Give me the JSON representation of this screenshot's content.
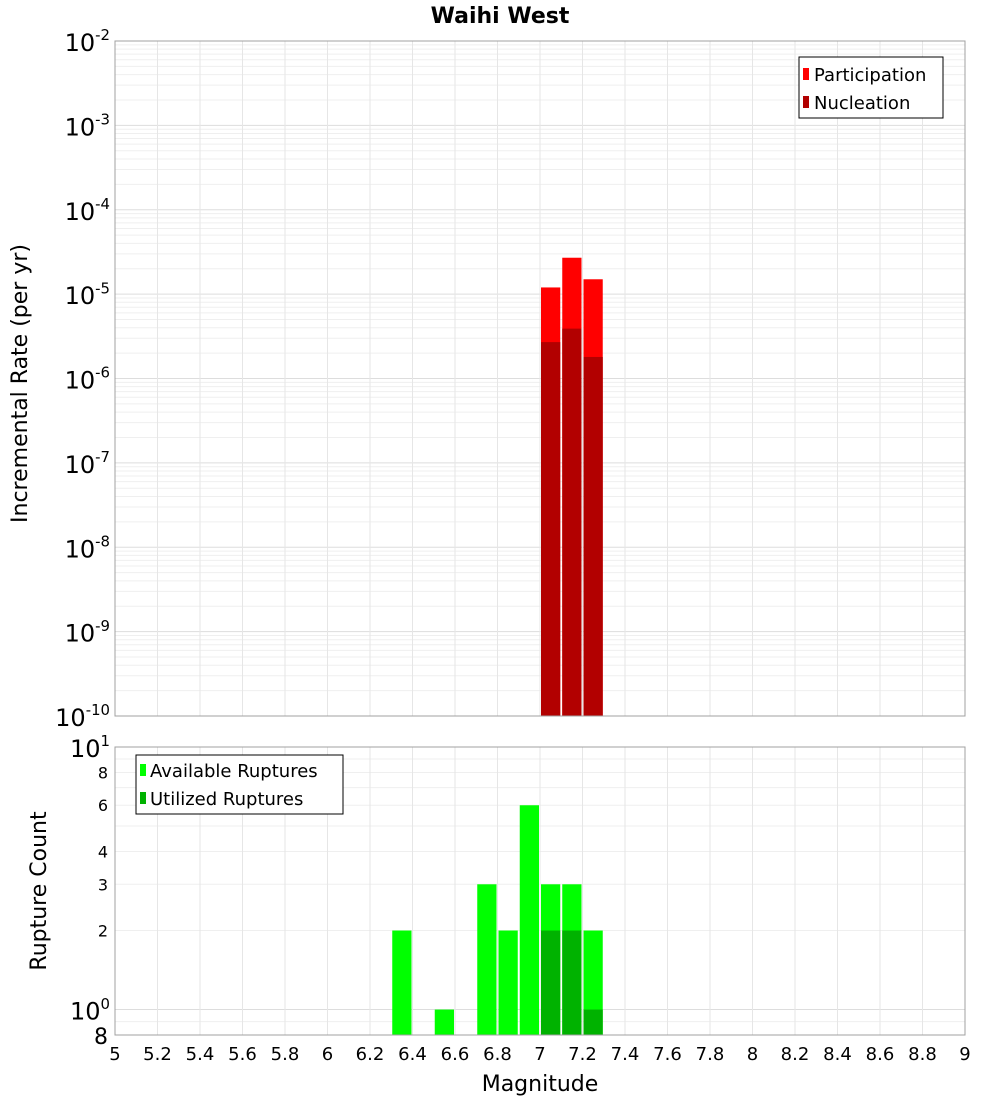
{
  "title": "Waihi West",
  "chart_data": [
    {
      "type": "bar",
      "title": "Waihi West",
      "xlabel": "",
      "ylabel": "Incremental Rate (per yr)",
      "yscale": "log",
      "ylim": [
        1e-10,
        0.01
      ],
      "xlim": [
        5,
        9
      ],
      "bin_width": 0.1,
      "y_tick_labels": [
        {
          "base": "10",
          "exp": "-2"
        },
        {
          "base": "10",
          "exp": "-3"
        },
        {
          "base": "10",
          "exp": "-4"
        },
        {
          "base": "10",
          "exp": "-5"
        },
        {
          "base": "10",
          "exp": "-6"
        },
        {
          "base": "10",
          "exp": "-7"
        },
        {
          "base": "10",
          "exp": "-8"
        },
        {
          "base": "10",
          "exp": "-9"
        },
        {
          "base": "10",
          "exp": "-10"
        }
      ],
      "legend": {
        "placement": "top-right"
      },
      "series": [
        {
          "name": "Participation",
          "color": "#ff0000",
          "x": [
            7.05,
            7.15,
            7.25
          ],
          "values": [
            1.2e-05,
            2.7e-05,
            1.5e-05
          ]
        },
        {
          "name": "Nucleation",
          "color": "#b20000",
          "x": [
            7.05,
            7.15,
            7.25
          ],
          "values": [
            2.7e-06,
            3.9e-06,
            1.8e-06
          ]
        }
      ],
      "grid": true
    },
    {
      "type": "bar",
      "title": "",
      "xlabel": "Magnitude",
      "ylabel": "Rupture Count",
      "yscale": "log",
      "ylim": [
        0.8,
        10
      ],
      "xlim": [
        5,
        9
      ],
      "bin_width": 0.1,
      "x_ticks": [
        "5",
        "5.2",
        "5.4",
        "5.6",
        "5.8",
        "6",
        "6.2",
        "6.4",
        "6.6",
        "6.8",
        "7",
        "7.2",
        "7.4",
        "7.6",
        "7.8",
        "8",
        "8.2",
        "8.4",
        "8.6",
        "8.8",
        "9"
      ],
      "y_tick_labels": [
        {
          "value": 8,
          "label": "8"
        },
        {
          "value": 6,
          "label": "6"
        },
        {
          "value": 4,
          "label": "4"
        },
        {
          "value": 3,
          "label": "3"
        },
        {
          "value": 2,
          "label": "2"
        }
      ],
      "y_power_labels": [
        {
          "value": 10,
          "base": "10",
          "exp": "1"
        },
        {
          "value": 1,
          "base": "10",
          "exp": "0"
        }
      ],
      "y_bottom_label": {
        "value": 0.8,
        "label": "8"
      },
      "legend": {
        "placement": "top-left"
      },
      "series": [
        {
          "name": "Available Ruptures",
          "color": "#00ff00",
          "x": [
            6.35,
            6.55,
            6.75,
            6.85,
            6.95,
            7.05,
            7.15,
            7.25
          ],
          "values": [
            2,
            1,
            3,
            2,
            6,
            3,
            3,
            2
          ]
        },
        {
          "name": "Utilized Ruptures",
          "color": "#00b200",
          "x": [
            7.05,
            7.15,
            7.25
          ],
          "values": [
            2,
            2,
            1
          ]
        }
      ],
      "grid": true
    }
  ]
}
